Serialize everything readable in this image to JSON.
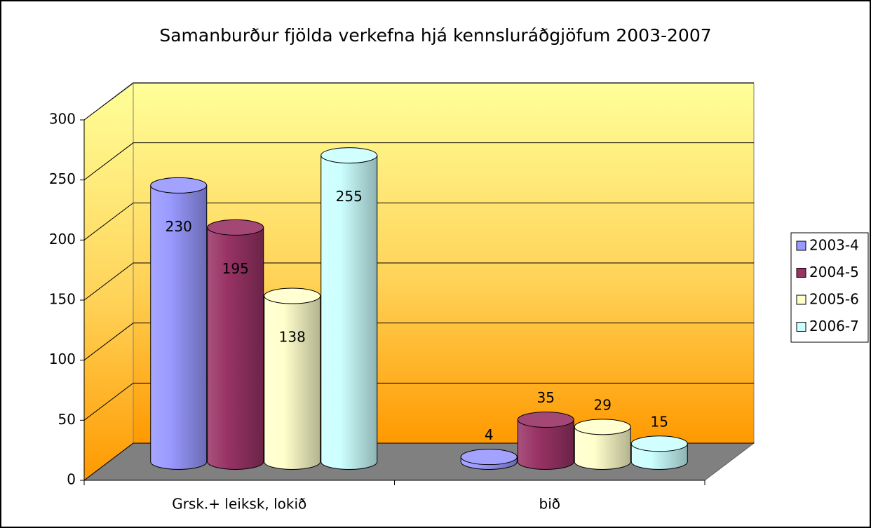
{
  "chart_data": {
    "type": "bar3d",
    "title": "Samanburður fjölda verkefna hjá kennsluráðgjöfum 2003-2007",
    "categories": [
      "Grsk.+ leiksk, lokið",
      "bið"
    ],
    "series": [
      {
        "name": "2003-4",
        "color": "#9999ff",
        "values": [
          230,
          4
        ]
      },
      {
        "name": "2004-5",
        "color": "#993366",
        "values": [
          195,
          35
        ]
      },
      {
        "name": "2005-6",
        "color": "#ffffcc",
        "values": [
          138,
          29
        ]
      },
      {
        "name": "2006-7",
        "color": "#ccffff",
        "values": [
          255,
          15
        ]
      }
    ],
    "ylim": [
      0,
      300
    ],
    "yticks": [
      0,
      50,
      100,
      150,
      200,
      250,
      300
    ],
    "grid": true,
    "legend": "right"
  }
}
